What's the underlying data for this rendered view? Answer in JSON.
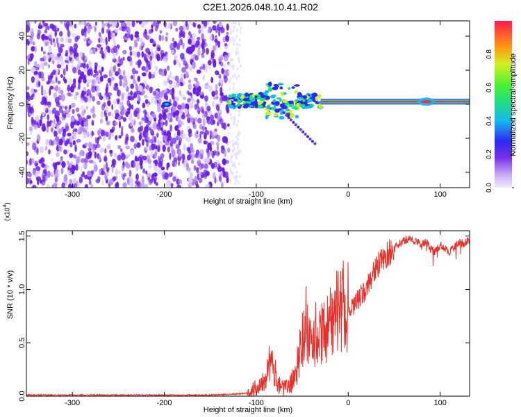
{
  "title": "C2E1.2026.048.10.41.R02",
  "chart_data": [
    {
      "type": "heatmap",
      "title": "C2E1.2026.048.10.41.R02",
      "xlabel": "Height of straight line (km)",
      "ylabel": "Frequency (Hz)",
      "xlim": [
        -350,
        132
      ],
      "ylim": [
        -49,
        49
      ],
      "x_ticks": [
        -300,
        -200,
        -100,
        0,
        100
      ],
      "x_tick_labels": [
        "-300",
        "-200",
        "-100",
        "0",
        "100"
      ],
      "y_ticks": [
        -40,
        -20,
        0,
        20,
        40
      ],
      "y_tick_labels": [
        "-40",
        "-20",
        "0",
        "20",
        "40"
      ],
      "grid": false,
      "colorbar": {
        "label": "Normalized spectral amplitude",
        "range": [
          0,
          1
        ],
        "ticks": [
          0.0,
          0.2,
          0.4,
          0.6,
          0.8
        ],
        "tick_labels": [
          "0.0",
          "0.2",
          "0.4",
          "0.6",
          "0.8"
        ],
        "colormap": "rainbow"
      },
      "series": [
        {
          "x_start": -350,
          "x_end": -130,
          "freq_min": -49,
          "freq_max": 49,
          "amplitude_approx": 0.1
        },
        {
          "x_start": -200,
          "x_end": -195,
          "freq_center": 0,
          "amplitude_approx": 0.15
        },
        {
          "x_start": -130,
          "x_end": -30,
          "freq_center": 2,
          "amplitude_approx": 0.45
        },
        {
          "x_start": -30,
          "x_end": 132,
          "freq_center": 1.5,
          "amplitude_approx": 1.0
        }
      ]
    },
    {
      "type": "line",
      "xlabel": "Height of straight line (km)",
      "ylabel": "SNR (10 * v/v)",
      "multiplier_label": "(x10",
      "multiplier_exp": "4",
      "xlim": [
        -350,
        132
      ],
      "ylim": [
        0,
        1.55
      ],
      "x_ticks": [
        -300,
        -200,
        -100,
        0,
        100
      ],
      "x_tick_labels": [
        "-300",
        "-200",
        "-100",
        "0",
        "100"
      ],
      "y_ticks": [
        0,
        0.5,
        1.0,
        1.5
      ],
      "y_tick_labels": [
        "0.0",
        "0.5",
        "1.0",
        "1.5"
      ],
      "grid": false,
      "line_color": "#e8312a",
      "series": [
        {
          "x": [
            -350,
            -300,
            -250,
            -200,
            -150,
            -120,
            -110,
            -100,
            -95,
            -90,
            -85,
            -80,
            -75,
            -70,
            -65,
            -60,
            -55,
            -50,
            -45,
            -40,
            -35,
            -30,
            -25,
            -20,
            -15,
            -10,
            -5,
            0,
            5,
            10,
            15,
            20,
            25,
            30,
            35,
            40,
            45,
            50,
            55,
            60,
            65,
            70,
            75,
            80,
            85,
            90,
            95,
            100,
            105,
            110,
            115,
            120,
            125,
            130
          ],
          "y": [
            0.01,
            0.01,
            0.01,
            0.01,
            0.01,
            0.02,
            0.03,
            0.08,
            0.12,
            0.2,
            0.32,
            0.22,
            0.12,
            0.07,
            0.09,
            0.15,
            0.3,
            0.52,
            0.6,
            0.45,
            0.5,
            0.55,
            0.62,
            0.7,
            0.78,
            0.82,
            0.8,
            0.78,
            0.82,
            0.9,
            0.95,
            1.0,
            1.12,
            1.2,
            1.25,
            1.3,
            1.35,
            1.38,
            1.42,
            1.45,
            1.48,
            1.46,
            1.44,
            1.42,
            1.45,
            1.38,
            1.35,
            1.42,
            1.38,
            1.35,
            1.4,
            1.44,
            1.43,
            1.45
          ]
        }
      ]
    }
  ]
}
